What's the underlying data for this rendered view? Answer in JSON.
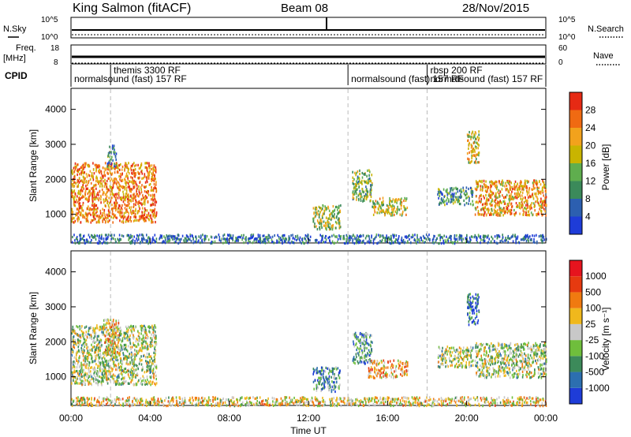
{
  "header": {
    "station": "King Salmon (fitACF)",
    "beam": "Beam 08",
    "date": "28/Nov/2015"
  },
  "params": {
    "nsky_label": "N.Sky",
    "nsearch_label": "N.Search",
    "freq_label": "Freq.",
    "freq_unit": "[MHz]",
    "nave_label": "Nave",
    "cpid_label": "CPID",
    "nsky_ticks": [
      "10^5",
      "10^0"
    ],
    "nsearch_ticks": [
      "10^5",
      "10^0"
    ],
    "freq_ticks": [
      "18",
      "8"
    ],
    "nave_ticks": [
      "60",
      "0"
    ],
    "cpid_segments": [
      {
        "label": "themis 3300 RF",
        "start": 2.0,
        "end": 14.0,
        "row": 0
      },
      {
        "label": "normalsound (fast) 157 RF",
        "start": 0.0,
        "end": 14.0,
        "row": 1
      },
      {
        "label": "normalsound (fast) 157 RF",
        "start": 14.0,
        "end": 18.0,
        "row": 1
      },
      {
        "label": "rbsp 200 RF",
        "start": 18.0,
        "end": 24.0,
        "row": 0
      },
      {
        "label": "normalsound (fast) 157 RF",
        "start": 18.0,
        "end": 24.0,
        "row": 1
      }
    ]
  },
  "chart_data": [
    {
      "type": "heatmap",
      "parameter": "Power",
      "ylabel": "Slant Range [km]",
      "xlabel": "",
      "x_range_hours": [
        0,
        24
      ],
      "ylim": [
        180,
        4600
      ],
      "y_ticks": [
        "1000",
        "2000",
        "3000",
        "4000"
      ],
      "colorbar": {
        "label": "Power [dB]",
        "ticks": [
          "28",
          "24",
          "20",
          "16",
          "12",
          "8",
          "4"
        ],
        "colors": [
          "#1e3cd8",
          "#2c5fb0",
          "#3b8a5a",
          "#5fae4e",
          "#c9b400",
          "#f2a21c",
          "#f06a12",
          "#e62a14"
        ]
      },
      "scatter_regions": [
        {
          "t0": 0.0,
          "t1": 4.3,
          "r0": 800,
          "r1": 2500,
          "level": 0.75
        },
        {
          "t0": 1.8,
          "t1": 2.3,
          "r0": 2400,
          "r1": 3000,
          "level": 0.3
        },
        {
          "t0": 12.2,
          "t1": 13.6,
          "r0": 600,
          "r1": 1300,
          "level": 0.5
        },
        {
          "t0": 14.2,
          "t1": 15.2,
          "r0": 1400,
          "r1": 2300,
          "level": 0.45
        },
        {
          "t0": 15.2,
          "t1": 17.0,
          "r0": 1000,
          "r1": 1500,
          "level": 0.55
        },
        {
          "t0": 18.5,
          "t1": 20.3,
          "r0": 1300,
          "r1": 1800,
          "level": 0.3
        },
        {
          "t0": 20.0,
          "t1": 20.6,
          "r0": 2500,
          "r1": 3400,
          "level": 0.55
        },
        {
          "t0": 20.4,
          "t1": 24.0,
          "r0": 1000,
          "r1": 2000,
          "level": 0.7
        },
        {
          "t0": 0.0,
          "t1": 24.0,
          "r0": 200,
          "r1": 450,
          "level": 0.2
        }
      ]
    },
    {
      "type": "heatmap",
      "parameter": "Velocity",
      "ylabel": "Slant Range [km]",
      "xlabel": "Time UT",
      "x_range_hours": [
        0,
        24
      ],
      "x_ticks": [
        "00:00",
        "04:00",
        "08:00",
        "12:00",
        "16:00",
        "20:00",
        "00:00"
      ],
      "ylim": [
        180,
        4600
      ],
      "y_ticks": [
        "1000",
        "2000",
        "3000",
        "4000"
      ],
      "colorbar": {
        "label": "Velocity [m s⁻¹]",
        "ticks": [
          "1000",
          "500",
          "100",
          "25",
          "-25",
          "-100",
          "-500",
          "-1000"
        ],
        "colors": [
          "#1e3cd8",
          "#2c6fb0",
          "#3c8a5a",
          "#6fbe3c",
          "#c8c8c8",
          "#f0b81c",
          "#f07a10",
          "#e63a10",
          "#e6141e"
        ]
      },
      "scatter_regions": [
        {
          "t0": 0.0,
          "t1": 4.3,
          "r0": 800,
          "r1": 2500,
          "level": 0.45
        },
        {
          "t0": 1.6,
          "t1": 2.4,
          "r0": 1700,
          "r1": 2700,
          "level": 0.6
        },
        {
          "t0": 12.2,
          "t1": 13.6,
          "r0": 600,
          "r1": 1300,
          "level": 0.3
        },
        {
          "t0": 14.2,
          "t1": 15.2,
          "r0": 1400,
          "r1": 2300,
          "level": 0.3
        },
        {
          "t0": 15.0,
          "t1": 17.0,
          "r0": 1000,
          "r1": 1500,
          "level": 0.65
        },
        {
          "t0": 18.5,
          "t1": 20.3,
          "r0": 1300,
          "r1": 1900,
          "level": 0.45
        },
        {
          "t0": 20.0,
          "t1": 20.6,
          "r0": 2500,
          "r1": 3400,
          "level": 0.15
        },
        {
          "t0": 20.4,
          "t1": 24.0,
          "r0": 1000,
          "r1": 2000,
          "level": 0.45
        },
        {
          "t0": 0.0,
          "t1": 24.0,
          "r0": 200,
          "r1": 450,
          "level": 0.55
        }
      ]
    }
  ]
}
